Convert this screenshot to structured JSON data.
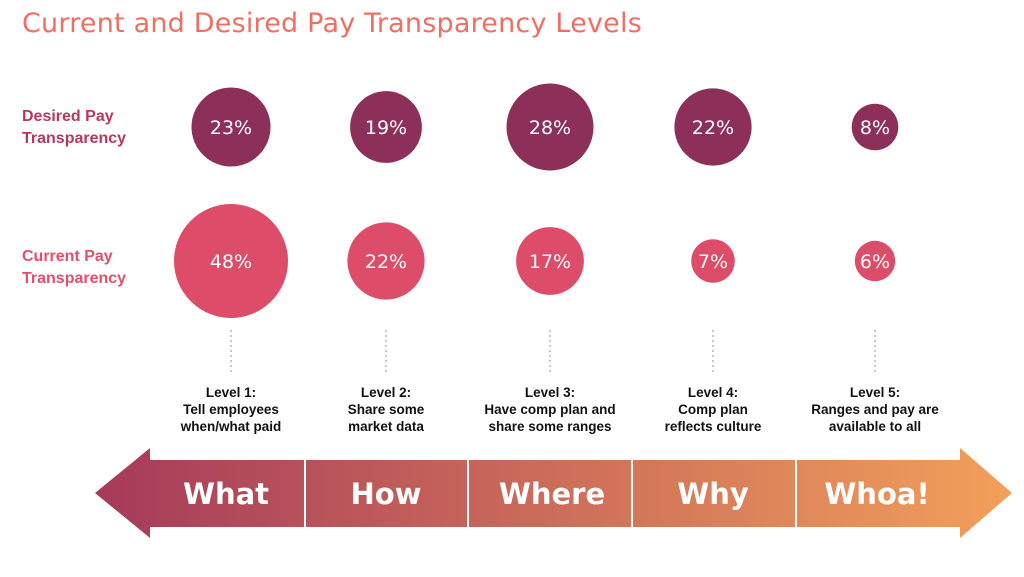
{
  "chart_data": {
    "type": "bubble",
    "title": "Current and Desired Pay Transparency Levels",
    "series": [
      {
        "name": "Desired Pay Transparency",
        "values": [
          23,
          19,
          28,
          22,
          8
        ],
        "labels": [
          "23%",
          "19%",
          "28%",
          "22%",
          "8%"
        ]
      },
      {
        "name": "Current Pay Transparency",
        "values": [
          48,
          22,
          17,
          7,
          6
        ],
        "labels": [
          "48%",
          "22%",
          "17%",
          "7%",
          "6%"
        ]
      }
    ],
    "categories": [
      {
        "level": "Level 1:",
        "lines": [
          "Tell employees",
          "when/what paid"
        ],
        "stage": "What"
      },
      {
        "level": "Level 2:",
        "lines": [
          "Share some",
          "market data"
        ],
        "stage": "How"
      },
      {
        "level": "Level 3:",
        "lines": [
          "Have comp plan and",
          "share some ranges"
        ],
        "stage": "Where"
      },
      {
        "level": "Level 4:",
        "lines": [
          "Comp plan",
          "reflects culture"
        ],
        "stage": "Why"
      },
      {
        "level": "Level 5:",
        "lines": [
          "Ranges and pay are",
          "available to all"
        ],
        "stage": "Whoa!"
      }
    ]
  },
  "colors": {
    "title": "#ee6f63",
    "desired": "#8c2f59",
    "current": "#dd4d6a",
    "arrow_start": "#a63a5a",
    "arrow_end": "#f2a05a"
  },
  "row_labels": {
    "desired": [
      "Desired Pay",
      "Transparency"
    ],
    "current": [
      "Current Pay",
      "Transparency"
    ]
  }
}
